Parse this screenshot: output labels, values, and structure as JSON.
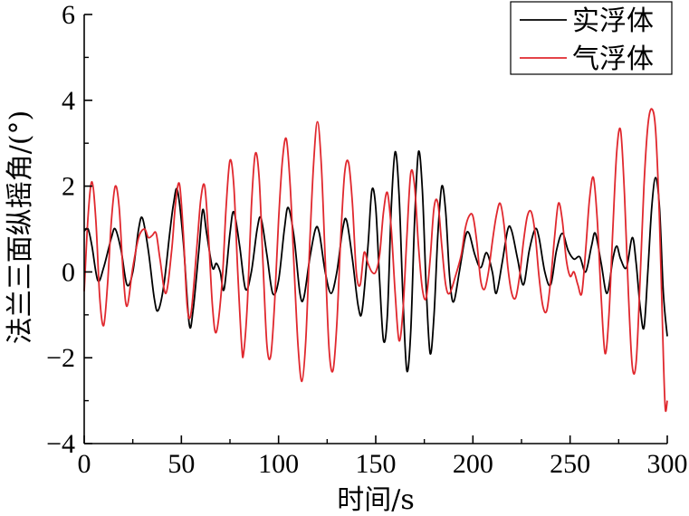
{
  "chart_data": {
    "type": "line",
    "xlabel": "时间/s",
    "ylabel": "法兰三面纵摇角/(°)",
    "xlim": [
      0,
      300
    ],
    "ylim": [
      -4,
      6
    ],
    "xticks": [
      0,
      50,
      100,
      150,
      200,
      250,
      300
    ],
    "yticks": [
      -4,
      -2,
      0,
      2,
      4,
      6
    ],
    "xtick_labels": [
      "0",
      "50",
      "100",
      "150",
      "200",
      "250",
      "300"
    ],
    "ytick_labels": [
      "−4",
      "−2",
      "0",
      "2",
      "4",
      "6"
    ],
    "grid": false,
    "legend_position": "top-right",
    "series": [
      {
        "name": "实浮体",
        "color": "#000000",
        "points": [
          [
            0,
            0.95
          ],
          [
            2,
            1.0
          ],
          [
            4,
            0.6
          ],
          [
            7,
            -0.2
          ],
          [
            10,
            0.1
          ],
          [
            14,
            0.8
          ],
          [
            16,
            1.0
          ],
          [
            19,
            0.5
          ],
          [
            22,
            -0.3
          ],
          [
            25,
            0.0
          ],
          [
            28,
            1.0
          ],
          [
            30,
            1.25
          ],
          [
            33,
            0.5
          ],
          [
            36,
            -0.6
          ],
          [
            38,
            -0.9
          ],
          [
            41,
            -0.3
          ],
          [
            44,
            0.9
          ],
          [
            46,
            1.6
          ],
          [
            48,
            1.9
          ],
          [
            51,
            0.7
          ],
          [
            54,
            -1.2
          ],
          [
            56,
            -0.9
          ],
          [
            59,
            0.5
          ],
          [
            61,
            1.45
          ],
          [
            63,
            0.9
          ],
          [
            66,
            0.1
          ],
          [
            68,
            0.2
          ],
          [
            70,
            0.0
          ],
          [
            72,
            -0.4
          ],
          [
            75,
            0.9
          ],
          [
            77,
            1.4
          ],
          [
            80,
            0.6
          ],
          [
            83,
            -0.4
          ],
          [
            86,
            0.0
          ],
          [
            89,
            1.0
          ],
          [
            91,
            1.25
          ],
          [
            94,
            0.4
          ],
          [
            97,
            -0.5
          ],
          [
            100,
            -0.2
          ],
          [
            103,
            1.0
          ],
          [
            105,
            1.5
          ],
          [
            108,
            0.8
          ],
          [
            111,
            -0.5
          ],
          [
            113,
            -0.6
          ],
          [
            116,
            0.3
          ],
          [
            119,
            1.0
          ],
          [
            121,
            0.9
          ],
          [
            124,
            0.0
          ],
          [
            127,
            -0.5
          ],
          [
            130,
            0.0
          ],
          [
            133,
            1.0
          ],
          [
            135,
            1.2
          ],
          [
            138,
            0.3
          ],
          [
            141,
            -0.8
          ],
          [
            143,
            -0.9
          ],
          [
            146,
            0.6
          ],
          [
            148,
            1.9
          ],
          [
            150,
            1.5
          ],
          [
            152,
            -0.2
          ],
          [
            154,
            -1.6
          ],
          [
            156,
            -1.0
          ],
          [
            158,
            1.5
          ],
          [
            160,
            2.8
          ],
          [
            162,
            1.8
          ],
          [
            164,
            -0.6
          ],
          [
            166,
            -2.3
          ],
          [
            168,
            -1.4
          ],
          [
            170,
            1.2
          ],
          [
            172,
            2.8
          ],
          [
            174,
            1.9
          ],
          [
            176,
            -0.4
          ],
          [
            178,
            -1.9
          ],
          [
            180,
            -1.0
          ],
          [
            182,
            0.9
          ],
          [
            184,
            2.0
          ],
          [
            186,
            1.4
          ],
          [
            188,
            -0.1
          ],
          [
            190,
            -0.7
          ],
          [
            193,
            0.0
          ],
          [
            196,
            0.8
          ],
          [
            198,
            0.9
          ],
          [
            201,
            0.4
          ],
          [
            204,
            0.1
          ],
          [
            207,
            0.45
          ],
          [
            210,
            0.0
          ],
          [
            212,
            -0.5
          ],
          [
            215,
            0.2
          ],
          [
            218,
            1.0
          ],
          [
            220,
            0.95
          ],
          [
            223,
            0.3
          ],
          [
            226,
            -0.3
          ],
          [
            229,
            0.5
          ],
          [
            232,
            1.0
          ],
          [
            234,
            0.8
          ],
          [
            237,
            0.0
          ],
          [
            240,
            -0.3
          ],
          [
            243,
            0.5
          ],
          [
            246,
            0.9
          ],
          [
            249,
            0.5
          ],
          [
            252,
            0.3
          ],
          [
            255,
            0.35
          ],
          [
            258,
            0.0
          ],
          [
            261,
            0.6
          ],
          [
            263,
            0.9
          ],
          [
            266,
            0.2
          ],
          [
            269,
            -0.5
          ],
          [
            272,
            0.3
          ],
          [
            274,
            0.6
          ],
          [
            276,
            0.3
          ],
          [
            279,
            0.1
          ],
          [
            282,
            0.8
          ],
          [
            284,
            0.2
          ],
          [
            286,
            -0.8
          ],
          [
            288,
            -1.3
          ],
          [
            290,
            0.0
          ],
          [
            292,
            1.5
          ],
          [
            294,
            2.2
          ],
          [
            296,
            1.5
          ],
          [
            298,
            -0.5
          ],
          [
            300,
            -1.5
          ]
        ]
      },
      {
        "name": "气浮体",
        "color": "#e0282e",
        "points": [
          [
            0,
            -0.45
          ],
          [
            2,
            1.3
          ],
          [
            4,
            2.1
          ],
          [
            6,
            1.2
          ],
          [
            8,
            -0.6
          ],
          [
            10,
            -1.25
          ],
          [
            12,
            -0.3
          ],
          [
            14,
            1.2
          ],
          [
            16,
            2.0
          ],
          [
            18,
            1.5
          ],
          [
            20,
            0.0
          ],
          [
            22,
            -0.8
          ],
          [
            25,
            0.1
          ],
          [
            28,
            0.8
          ],
          [
            31,
            1.0
          ],
          [
            33,
            0.8
          ],
          [
            35,
            0.85
          ],
          [
            37,
            0.9
          ],
          [
            39,
            0.3
          ],
          [
            42,
            -0.5
          ],
          [
            45,
            0.5
          ],
          [
            47,
            1.6
          ],
          [
            49,
            2.05
          ],
          [
            51,
            0.9
          ],
          [
            53,
            -0.8
          ],
          [
            55,
            -0.95
          ],
          [
            58,
            0.6
          ],
          [
            60,
            1.7
          ],
          [
            62,
            2.0
          ],
          [
            64,
            0.8
          ],
          [
            66,
            -0.8
          ],
          [
            68,
            -1.4
          ],
          [
            71,
            -0.2
          ],
          [
            73,
            1.5
          ],
          [
            75,
            2.6
          ],
          [
            77,
            2.0
          ],
          [
            79,
            0.0
          ],
          [
            81,
            -1.7
          ],
          [
            82,
            -1.9
          ],
          [
            84,
            -0.7
          ],
          [
            86,
            1.5
          ],
          [
            88,
            2.75
          ],
          [
            90,
            2.2
          ],
          [
            92,
            0.2
          ],
          [
            94,
            -1.7
          ],
          [
            96,
            -1.95
          ],
          [
            98,
            -0.7
          ],
          [
            100,
            1.2
          ],
          [
            102,
            2.6
          ],
          [
            104,
            3.1
          ],
          [
            106,
            2.0
          ],
          [
            108,
            0.1
          ],
          [
            110,
            -1.7
          ],
          [
            112,
            -2.55
          ],
          [
            114,
            -1.6
          ],
          [
            116,
            0.6
          ],
          [
            118,
            2.5
          ],
          [
            120,
            3.5
          ],
          [
            122,
            2.5
          ],
          [
            124,
            0.3
          ],
          [
            126,
            -1.8
          ],
          [
            128,
            -2.3
          ],
          [
            130,
            -1.2
          ],
          [
            132,
            0.8
          ],
          [
            134,
            2.3
          ],
          [
            136,
            2.55
          ],
          [
            138,
            1.6
          ],
          [
            140,
            0.0
          ],
          [
            142,
            -0.3
          ],
          [
            144,
            0.45
          ],
          [
            146,
            0.2
          ],
          [
            148,
            0.0
          ],
          [
            150,
            0.0
          ],
          [
            152,
            0.4
          ],
          [
            154,
            1.4
          ],
          [
            156,
            1.85
          ],
          [
            158,
            1.0
          ],
          [
            160,
            -0.5
          ],
          [
            162,
            -1.6
          ],
          [
            164,
            -0.9
          ],
          [
            166,
            0.8
          ],
          [
            168,
            2.3
          ],
          [
            170,
            2.0
          ],
          [
            172,
            0.6
          ],
          [
            174,
            -0.4
          ],
          [
            176,
            -0.6
          ],
          [
            178,
            0.3
          ],
          [
            180,
            1.5
          ],
          [
            182,
            1.6
          ],
          [
            184,
            0.6
          ],
          [
            186,
            -0.3
          ],
          [
            188,
            -0.5
          ],
          [
            191,
            -0.1
          ],
          [
            194,
            0.4
          ],
          [
            196,
            1.0
          ],
          [
            198,
            1.3
          ],
          [
            200,
            1.3
          ],
          [
            202,
            0.7
          ],
          [
            204,
            -0.2
          ],
          [
            206,
            -0.4
          ],
          [
            208,
            0.0
          ],
          [
            210,
            0.7
          ],
          [
            212,
            1.3
          ],
          [
            214,
            1.6
          ],
          [
            216,
            1.1
          ],
          [
            218,
            0.1
          ],
          [
            220,
            -0.5
          ],
          [
            222,
            -0.6
          ],
          [
            224,
            -0.1
          ],
          [
            226,
            0.7
          ],
          [
            228,
            1.3
          ],
          [
            230,
            1.4
          ],
          [
            232,
            0.9
          ],
          [
            234,
            -0.1
          ],
          [
            236,
            -0.8
          ],
          [
            238,
            -0.9
          ],
          [
            240,
            -0.2
          ],
          [
            242,
            0.8
          ],
          [
            244,
            1.6
          ],
          [
            246,
            1.2
          ],
          [
            248,
            0.3
          ],
          [
            250,
            -0.1
          ],
          [
            252,
            0.0
          ],
          [
            254,
            -0.3
          ],
          [
            256,
            -0.5
          ],
          [
            258,
            0.5
          ],
          [
            260,
            1.7
          ],
          [
            262,
            2.2
          ],
          [
            264,
            1.2
          ],
          [
            266,
            -0.6
          ],
          [
            268,
            -1.9
          ],
          [
            270,
            -1.0
          ],
          [
            272,
            1.0
          ],
          [
            274,
            2.8
          ],
          [
            276,
            3.3
          ],
          [
            278,
            1.8
          ],
          [
            280,
            -0.5
          ],
          [
            282,
            -2.2
          ],
          [
            284,
            -2.1
          ],
          [
            286,
            -0.2
          ],
          [
            288,
            2.0
          ],
          [
            290,
            3.4
          ],
          [
            292,
            3.8
          ],
          [
            294,
            3.3
          ],
          [
            296,
            1.2
          ],
          [
            298,
            -2.0
          ],
          [
            299,
            -3.2
          ],
          [
            300,
            -3.0
          ]
        ]
      }
    ]
  }
}
